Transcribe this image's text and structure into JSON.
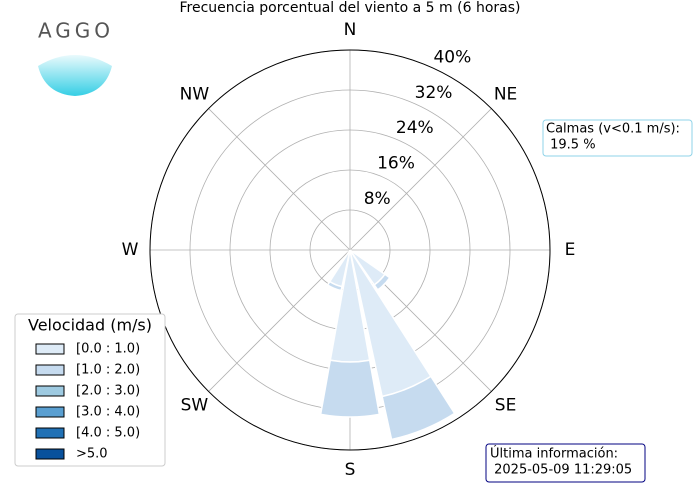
{
  "chart_data": {
    "type": "windrose",
    "title": "Frecuencia porcentual del viento a 5 m (6 horas)",
    "logo": "AGGO",
    "categories": [
      "N",
      null,
      "NE",
      null,
      "E",
      null,
      "SE",
      null,
      "S",
      null,
      "SW",
      null,
      "W",
      null,
      "NW",
      null
    ],
    "rlim": [
      0,
      40
    ],
    "rticks": [
      {
        "value": 8,
        "label": "8%"
      },
      {
        "value": 16,
        "label": "16%"
      },
      {
        "value": 24,
        "label": "24%"
      },
      {
        "value": 32,
        "label": "32%"
      },
      {
        "value": 40,
        "label": "40%"
      }
    ],
    "grid": true,
    "legend_title": "Velocidad (m/s)",
    "legend_position": "lower-left",
    "series": [
      {
        "name": "[0.0 : 1.0)",
        "color": "#deebf7",
        "values": [
          0,
          0,
          0,
          0,
          0,
          0,
          8.5,
          30,
          22.4,
          7.5,
          0,
          0,
          0,
          0,
          0,
          0
        ]
      },
      {
        "name": "[1.0 : 2.0)",
        "color": "#c6dbef",
        "values": [
          0,
          0,
          0,
          0,
          0,
          0,
          1.2,
          8.8,
          11,
          0.8,
          0,
          0,
          0,
          0,
          0,
          0
        ]
      },
      {
        "name": "[2.0 : 3.0)",
        "color": "#9ecae1",
        "values": [
          0,
          0,
          0,
          0,
          0,
          0,
          0,
          0,
          0,
          0,
          0,
          0,
          0,
          0,
          0,
          0
        ]
      },
      {
        "name": "[3.0 : 4.0)",
        "color": "#5a9fd1",
        "values": [
          0,
          0,
          0,
          0,
          0,
          0,
          0,
          0,
          0,
          0,
          0,
          0,
          0,
          0,
          0,
          0
        ]
      },
      {
        "name": "[4.0 : 5.0)",
        "color": "#2171b5",
        "values": [
          0,
          0,
          0,
          0,
          0,
          0,
          0,
          0,
          0,
          0,
          0,
          0,
          0,
          0,
          0,
          0
        ]
      },
      {
        "name": ">5.0",
        "color": "#08519c",
        "values": [
          0,
          0,
          0,
          0,
          0,
          0,
          0,
          0,
          0,
          0,
          0,
          0,
          0,
          0,
          0,
          0
        ]
      }
    ],
    "annotations": {
      "calm": [
        "Calmas (v<0.1 m/s):",
        " 19.5 %"
      ],
      "last_update": [
        "Última información:",
        " 2025-05-09 11:29:05"
      ]
    }
  }
}
